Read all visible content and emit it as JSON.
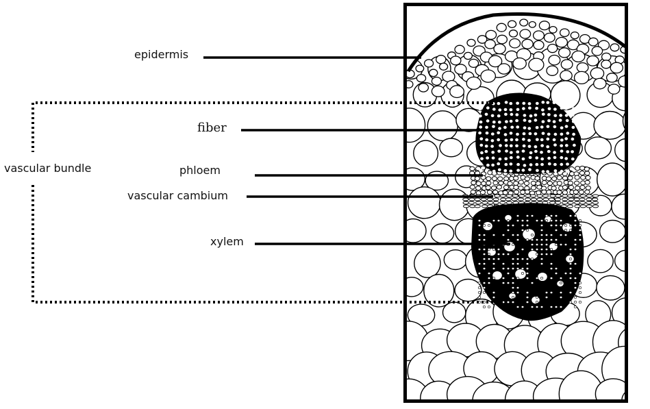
{
  "labels": {
    "epidermis": "epidermis",
    "fiber": "fiber",
    "phloem": "phloem",
    "vascular_cambium": "vascular cambium",
    "xylem": "xylem",
    "vascular_bundle": "vascular bundle"
  },
  "colors": {
    "ink": "#000000",
    "background": "#ffffff"
  }
}
